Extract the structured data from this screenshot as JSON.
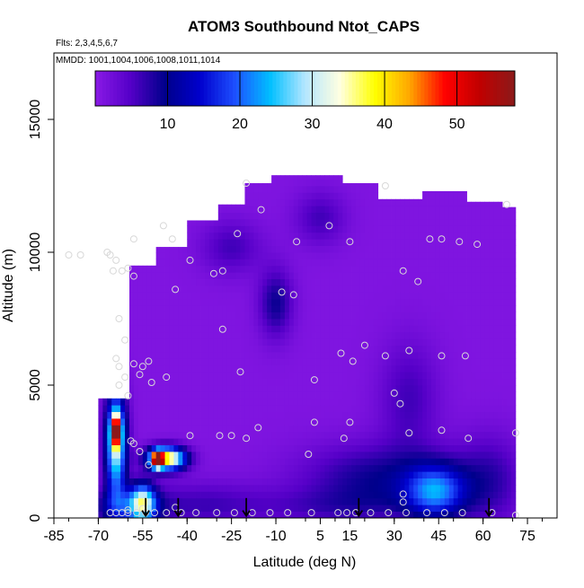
{
  "chart_data": {
    "type": "heatmap",
    "title": "ATOM3 Southbound Ntot_CAPS",
    "subtitle_lines": [
      "Flts: 2,3,4,5,6,7",
      "MMDD: 1001,1004,1006,1008,1011,1014"
    ],
    "xlabel": "Latitude (deg N)",
    "ylabel": "Altitude (m)",
    "xlim": [
      -85,
      85
    ],
    "ylim": [
      0,
      17500
    ],
    "x_ticks": [
      -85,
      -70,
      -55,
      -40,
      -25,
      -10,
      5,
      15,
      30,
      45,
      60,
      75
    ],
    "y_ticks": [
      0,
      5000,
      10000,
      15000
    ],
    "colorbar": {
      "min": 0,
      "max": 58,
      "ticks": [
        10,
        20,
        30,
        40,
        50
      ],
      "colors": [
        "#8a1ae6",
        "#5500c8",
        "#00008b",
        "#0000cd",
        "#1e50ff",
        "#00bfff",
        "#b4e6ff",
        "#ffffe0",
        "#ffff00",
        "#ffa500",
        "#ff0000",
        "#c00000",
        "#8b1a1a"
      ]
    },
    "background_value": 1,
    "field_blobs": [
      {
        "lat": -64,
        "alt": 2800,
        "sx": 2.5,
        "sy": 1400,
        "value": 30
      },
      {
        "lat": -64,
        "alt": 3300,
        "sx": 1.0,
        "sy": 400,
        "value": 42
      },
      {
        "lat": -47,
        "alt": 2250,
        "sx": 4.5,
        "sy": 300,
        "value": 40
      },
      {
        "lat": -50,
        "alt": 2200,
        "sx": 1.2,
        "sy": 200,
        "value": 52
      },
      {
        "lat": -60,
        "alt": 400,
        "sx": 8,
        "sy": 500,
        "value": 12
      },
      {
        "lat": -55,
        "alt": 600,
        "sx": 3,
        "sy": 500,
        "value": 25
      },
      {
        "lat": -10,
        "alt": 8100,
        "sx": 4,
        "sy": 900,
        "value": 8
      },
      {
        "lat": -25,
        "alt": 10200,
        "sx": 7,
        "sy": 700,
        "value": 5
      },
      {
        "lat": 5,
        "alt": 11300,
        "sx": 6,
        "sy": 700,
        "value": 5
      },
      {
        "lat": 35,
        "alt": 4500,
        "sx": 7,
        "sy": 1500,
        "value": 5
      },
      {
        "lat": 44,
        "alt": 1000,
        "sx": 7,
        "sy": 700,
        "value": 18
      },
      {
        "lat": 25,
        "alt": 1500,
        "sx": 18,
        "sy": 900,
        "value": 8
      },
      {
        "lat": 62,
        "alt": 1400,
        "sx": 8,
        "sy": 1200,
        "value": 6
      },
      {
        "lat": -35,
        "alt": 500,
        "sx": 15,
        "sy": 600,
        "value": 5
      },
      {
        "lat": 10,
        "alt": 400,
        "sx": 20,
        "sy": 500,
        "value": 4
      }
    ],
    "coverage": [
      {
        "lat_min": -70,
        "lat_max": -60,
        "top": 4500
      },
      {
        "lat_min": -60,
        "lat_max": -50,
        "top": 9500
      },
      {
        "lat_min": -50,
        "lat_max": -40,
        "top": 10200
      },
      {
        "lat_min": -40,
        "lat_max": -30,
        "top": 11200
      },
      {
        "lat_min": -30,
        "lat_max": -20,
        "top": 11800
      },
      {
        "lat_min": -20,
        "lat_max": -12,
        "top": 12600
      },
      {
        "lat_min": -12,
        "lat_max": 12,
        "top": 12900
      },
      {
        "lat_min": 12,
        "lat_max": 25,
        "top": 12600
      },
      {
        "lat_min": 25,
        "lat_max": 40,
        "top": 12000
      },
      {
        "lat_min": 40,
        "lat_max": 55,
        "top": 12300
      },
      {
        "lat_min": 55,
        "lat_max": 66,
        "top": 11900
      },
      {
        "lat_min": 66,
        "lat_max": 71,
        "top": 11700
      }
    ],
    "sample_points": [
      [
        -67,
        10000
      ],
      [
        -66,
        9900
      ],
      [
        -65,
        9300
      ],
      [
        -64,
        9700
      ],
      [
        -62,
        9300
      ],
      [
        -60,
        9400
      ],
      [
        -58,
        9100
      ],
      [
        -63,
        7500
      ],
      [
        -61,
        6700
      ],
      [
        -64,
        6000
      ],
      [
        -63,
        5700
      ],
      [
        -61,
        5300
      ],
      [
        -63,
        5000
      ],
      [
        -58,
        5800
      ],
      [
        -56,
        5400
      ],
      [
        -55,
        5700
      ],
      [
        -53,
        5900
      ],
      [
        -52,
        5100
      ],
      [
        -60,
        4600
      ],
      [
        -59,
        2900
      ],
      [
        -58,
        2800
      ],
      [
        -56,
        2500
      ],
      [
        -53,
        2000
      ],
      [
        -80,
        9900
      ],
      [
        -76,
        9900
      ],
      [
        -58,
        10500
      ],
      [
        -48,
        11000
      ],
      [
        -45,
        10500
      ],
      [
        -44,
        8600
      ],
      [
        -39,
        9700
      ],
      [
        -31,
        9200
      ],
      [
        -28,
        9300
      ],
      [
        -23,
        10700
      ],
      [
        -20,
        12600
      ],
      [
        -15,
        11600
      ],
      [
        -8,
        8500
      ],
      [
        -4,
        8400
      ],
      [
        -3,
        10400
      ],
      [
        8,
        11000
      ],
      [
        15,
        10400
      ],
      [
        27,
        12500
      ],
      [
        33,
        9300
      ],
      [
        38,
        8900
      ],
      [
        42,
        10500
      ],
      [
        46,
        10500
      ],
      [
        52,
        10400
      ],
      [
        58,
        10300
      ],
      [
        68,
        11800
      ],
      [
        -22,
        5500
      ],
      [
        -28,
        7100
      ],
      [
        -47,
        5300
      ],
      [
        3,
        5200
      ],
      [
        12,
        6200
      ],
      [
        16,
        5900
      ],
      [
        20,
        6500
      ],
      [
        27,
        6100
      ],
      [
        35,
        6300
      ],
      [
        46,
        6100
      ],
      [
        54,
        6100
      ],
      [
        30,
        4700
      ],
      [
        32,
        4300
      ],
      [
        35,
        3200
      ],
      [
        46,
        3300
      ],
      [
        55,
        3000
      ],
      [
        71,
        3200
      ],
      [
        3,
        3600
      ],
      [
        15,
        3600
      ],
      [
        -16,
        3400
      ],
      [
        -25,
        3100
      ],
      [
        -29,
        3100
      ],
      [
        -39,
        3100
      ],
      [
        -20,
        3000
      ],
      [
        1,
        2400
      ],
      [
        13,
        3000
      ],
      [
        33,
        900
      ],
      [
        33,
        600
      ],
      [
        -66,
        200
      ],
      [
        -64,
        200
      ],
      [
        -62,
        200
      ],
      [
        -60,
        200
      ],
      [
        -57,
        200
      ],
      [
        -54,
        200
      ],
      [
        -51,
        200
      ],
      [
        -47,
        200
      ],
      [
        -42,
        200
      ],
      [
        -37,
        200
      ],
      [
        -30,
        200
      ],
      [
        -24,
        200
      ],
      [
        -18,
        200
      ],
      [
        -12,
        200
      ],
      [
        -6,
        200
      ],
      [
        2,
        200
      ],
      [
        11,
        200
      ],
      [
        14,
        200
      ],
      [
        17,
        200
      ],
      [
        22,
        200
      ],
      [
        28,
        200
      ],
      [
        34,
        200
      ],
      [
        41,
        200
      ],
      [
        47,
        200
      ],
      [
        53,
        200
      ],
      [
        63,
        200
      ],
      [
        71,
        100
      ],
      [
        -60,
        300
      ],
      [
        -55,
        350
      ],
      [
        -44,
        400
      ]
    ],
    "arrows_lat": [
      -54,
      -43,
      -20,
      18,
      62
    ]
  }
}
